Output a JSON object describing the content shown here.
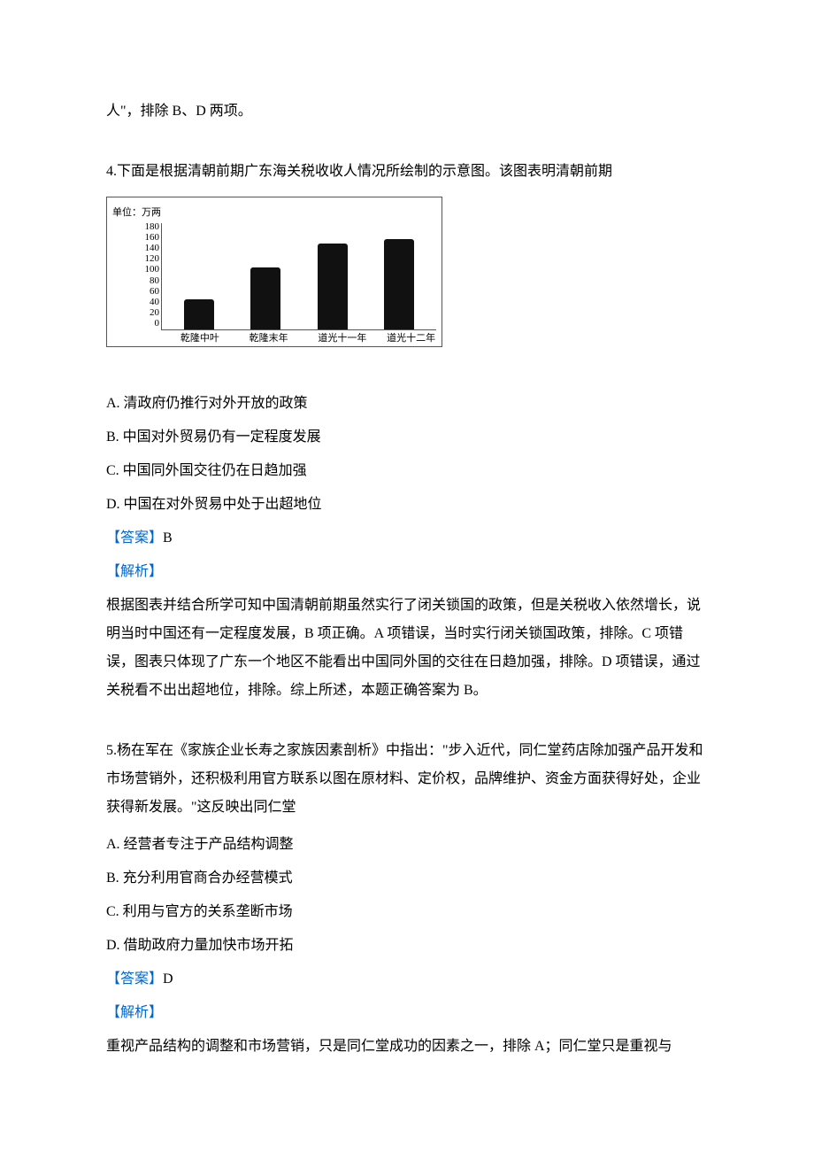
{
  "trailing_fragment": "人\"，排除 B、D 两项。",
  "q4": {
    "intro": "4.下面是根据清朝前期广东海关税收收人情况所绘制的示意图。该图表明清朝前期",
    "chart": {
      "type": "bar",
      "unit": "单位：万两",
      "ylim": [
        0,
        180
      ],
      "ytick_step": 20,
      "yticks": [
        "180",
        "160",
        "140",
        "120",
        "100",
        "80",
        "60",
        "40",
        "20",
        "0"
      ],
      "categories": [
        "乾隆中叶",
        "乾隆末年",
        "道光十一年",
        "道光十二年"
      ],
      "values": [
        50,
        105,
        145,
        152
      ],
      "bar_color": "#111111",
      "border_color": "#555555",
      "axis_color": "#555555",
      "background_color": "#ffffff",
      "font_size": 11
    },
    "options": {
      "A": "A. 清政府仍推行对外开放的政策",
      "B": "B. 中国对外贸易仍有一定程度发展",
      "C": "C. 中国同外国交往仍在日趋加强",
      "D": "D. 中国在对外贸易中处于出超地位"
    },
    "answer_label": "【答案】",
    "answer": "B",
    "analysis_label": "【解析】",
    "analysis": "根据图表并结合所学可知中国清朝前期虽然实行了闭关锁国的政策，但是关税收入依然增长，说明当时中国还有一定程度发展，B 项正确。A 项错误，当时实行闭关锁国政策，排除。C 项错误，图表只体现了广东一个地区不能看出中国同外国的交往在日趋加强，排除。D 项错误，通过关税看不出出超地位，排除。综上所述，本题正确答案为 B。"
  },
  "q5": {
    "intro": "5.杨在军在《家族企业长寿之家族因素剖析》中指出：\"步入近代，同仁堂药店除加强产品开发和市场营销外，还积极利用官方联系以图在原材料、定价权，品牌维护、资金方面获得好处，企业获得新发展。\"这反映出同仁堂",
    "options": {
      "A": "A. 经营者专注于产品结构调整",
      "B": "B. 充分利用官商合办经营模式",
      "C": "C. 利用与官方的关系垄断市场",
      "D": "D. 借助政府力量加快市场开拓"
    },
    "answer_label": "【答案】",
    "answer": "D",
    "analysis_label": "【解析】",
    "analysis_partial": "重视产品结构的调整和市场营销，只是同仁堂成功的因素之一，排除 A；同仁堂只是重视与"
  }
}
